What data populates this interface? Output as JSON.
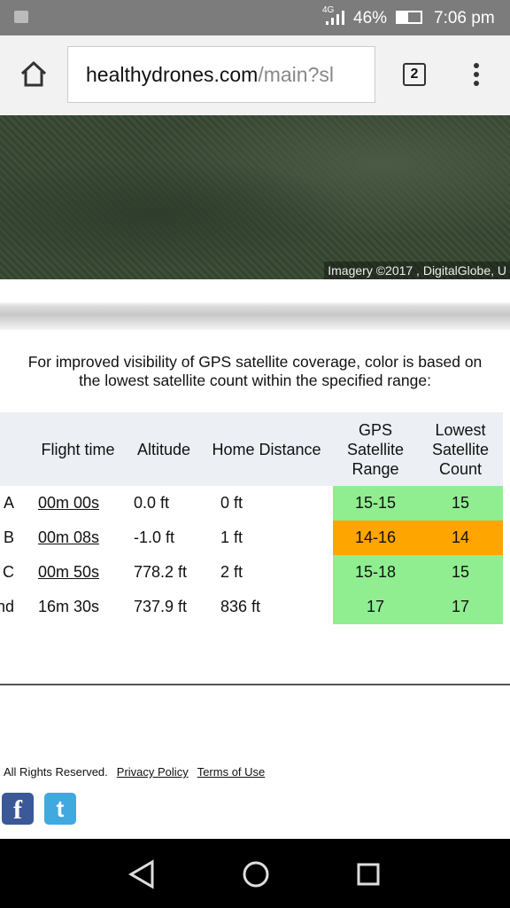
{
  "status_bar": {
    "network": "4G",
    "battery": "46%",
    "time": "7:06 pm"
  },
  "browser": {
    "url_host": "healthydrones.com",
    "url_path": "/main?sl",
    "tab_count": "2"
  },
  "map": {
    "attribution": "Imagery ©2017 , DigitalGlobe, U"
  },
  "intro": "For improved visibility of GPS satellite coverage, color is based on the lowest satellite count within the specified range:",
  "table": {
    "headers": [
      "Flight time",
      "Altitude",
      "Home Distance",
      "GPS Satellite Range",
      "Lowest Satellite Count"
    ],
    "rows": [
      {
        "label": "A",
        "flight_time": "00m 00s",
        "linked": true,
        "altitude": "0.0 ft",
        "home_distance": "0 ft",
        "range": "15-15",
        "count": "15",
        "color": "#90ee90"
      },
      {
        "label": "B",
        "flight_time": "00m 08s",
        "linked": true,
        "altitude": "-1.0 ft",
        "home_distance": "1 ft",
        "range": "14-16",
        "count": "14",
        "color": "#ffa500"
      },
      {
        "label": "C",
        "flight_time": "00m 50s",
        "linked": true,
        "altitude": "778.2 ft",
        "home_distance": "2 ft",
        "range": "15-18",
        "count": "15",
        "color": "#90ee90"
      },
      {
        "label": "End",
        "flight_time": "16m 30s",
        "linked": false,
        "altitude": "737.9 ft",
        "home_distance": "836 ft",
        "range": "17",
        "count": "17",
        "color": "#90ee90"
      }
    ]
  },
  "footer": {
    "rights": "All Rights Reserved.",
    "links": [
      "Privacy Policy",
      "Terms of Use"
    ]
  }
}
